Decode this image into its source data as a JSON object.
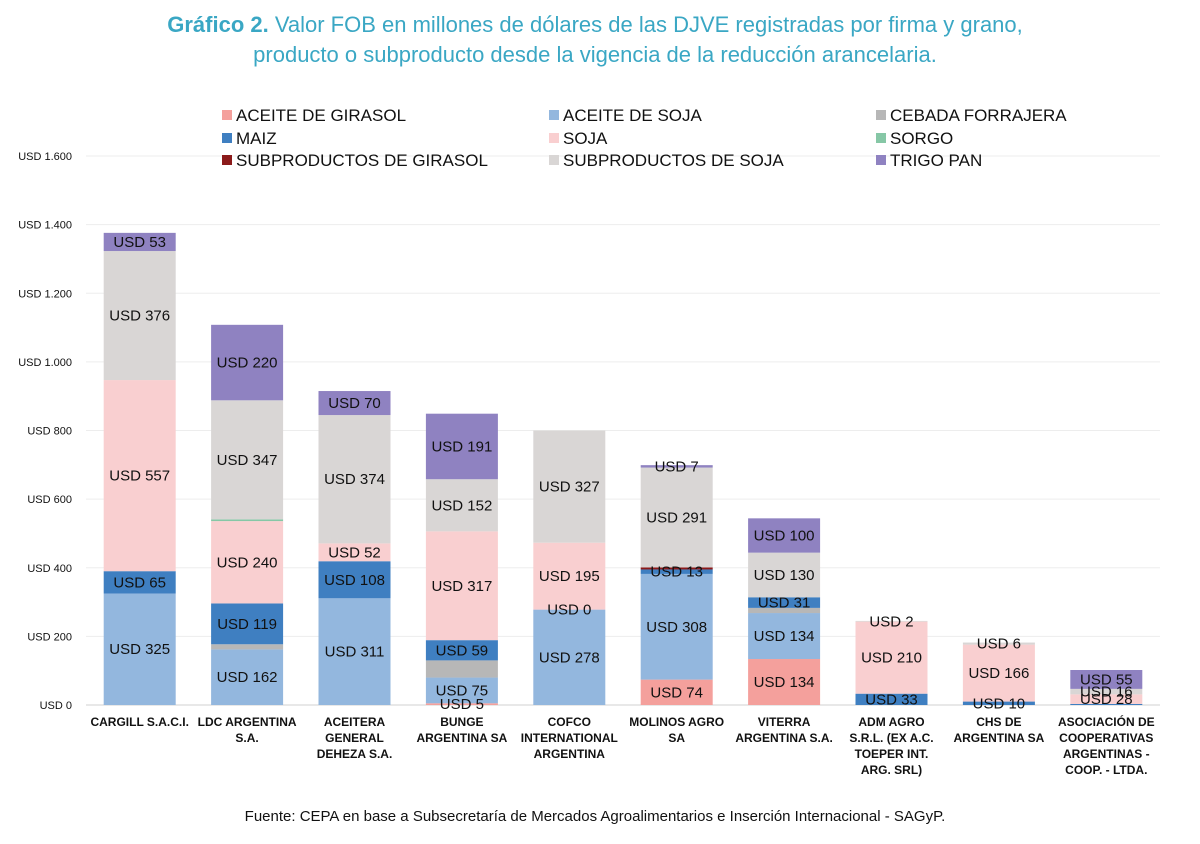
{
  "header": {
    "title_bold": "Gráfico 2.",
    "title_line1": " Valor FOB en millones de dólares de las DJVE registradas por firma y grano,",
    "title_line2": "producto o subproducto desde la vigencia de la reducción arancelaria."
  },
  "footer": {
    "source": "Fuente: CEPA en base a Subsecretaría de Mercados Agroalimentarios e Inserción Internacional - SAGyP."
  },
  "chart_data": {
    "type": "bar",
    "stacked": true,
    "title": "Gráfico 2. Valor FOB en millones de dólares de las DJVE registradas por firma y grano, producto o subproducto desde la vigencia de la reducción arancelaria.",
    "ylim": [
      0,
      1600
    ],
    "yticks": [
      0,
      200,
      400,
      600,
      800,
      1000,
      1200,
      1400,
      1600
    ],
    "ytick_labels": [
      "USD 0",
      "USD 200",
      "USD 400",
      "USD 600",
      "USD 800",
      "USD 1.000",
      "USD 1.200",
      "USD 1.400",
      "USD 1.600"
    ],
    "grid": true,
    "legend_position": "top",
    "categories": [
      [
        "CARGILL S.A.C.I."
      ],
      [
        "LDC ARGENTINA",
        "S.A."
      ],
      [
        "ACEITERA",
        "GENERAL",
        "DEHEZA S.A."
      ],
      [
        "BUNGE",
        "ARGENTINA SA"
      ],
      [
        "COFCO",
        "INTERNATIONAL",
        "ARGENTINA"
      ],
      [
        "MOLINOS AGRO",
        "SA"
      ],
      [
        "VITERRA",
        "ARGENTINA S.A."
      ],
      [
        "ADM AGRO",
        "S.R.L. (EX A.C.",
        "TOEPER INT.",
        "ARG. SRL)"
      ],
      [
        "CHS DE",
        "ARGENTINA SA"
      ],
      [
        "ASOCIACIÓN DE",
        "COOPERATIVAS",
        "ARGENTINAS -",
        "COOP. - LTDA."
      ]
    ],
    "series": [
      {
        "name": "ACEITE DE GIRASOL",
        "color": "#f4a09c",
        "values": [
          0,
          0,
          0,
          5,
          0,
          74,
          134,
          0,
          0,
          0
        ],
        "labels": [
          "",
          "",
          "",
          "USD 5",
          "",
          "USD 74",
          "USD 134",
          "",
          "",
          ""
        ]
      },
      {
        "name": "ACEITE DE SOJA",
        "color": "#93b7de",
        "values": [
          325,
          162,
          311,
          75,
          278,
          308,
          134,
          0,
          0,
          0
        ],
        "labels": [
          "USD 325",
          "USD 162",
          "USD 311",
          "USD 75",
          "USD 278",
          "USD 308",
          "USD 134",
          "",
          "",
          ""
        ]
      },
      {
        "name": "CEBADA FORRAJERA",
        "color": "#b7b7b7",
        "values": [
          0,
          15,
          0,
          50,
          0,
          0,
          15,
          0,
          0,
          0
        ],
        "labels": [
          "",
          "",
          "",
          "",
          "",
          "",
          "",
          "",
          "",
          ""
        ]
      },
      {
        "name": "MAIZ",
        "color": "#3f7fc1",
        "values": [
          65,
          119,
          108,
          59,
          0,
          13,
          31,
          33,
          10,
          3
        ],
        "labels": [
          "USD 65",
          "USD 119",
          "USD 108",
          "USD 59",
          "USD 0",
          "USD 13",
          "USD 31",
          "USD 33",
          "USD 10",
          ""
        ]
      },
      {
        "name": "SOJA",
        "color": "#f9cfd0",
        "values": [
          557,
          240,
          52,
          317,
          195,
          0,
          0,
          210,
          166,
          28
        ],
        "labels": [
          "USD 557",
          "USD 240",
          "USD 52",
          "USD 317",
          "USD 195",
          "",
          "",
          "USD 210",
          "USD 166",
          "USD 28"
        ]
      },
      {
        "name": "SORGO",
        "color": "#86c7a6",
        "values": [
          0,
          5,
          0,
          0,
          0,
          0,
          0,
          0,
          0,
          0
        ],
        "labels": [
          "",
          "",
          "",
          "",
          "",
          "",
          "",
          "",
          "",
          ""
        ]
      },
      {
        "name": "SUBPRODUCTOS DE GIRASOL",
        "color": "#8b1a1a",
        "values": [
          0,
          0,
          0,
          0,
          0,
          6,
          0,
          0,
          0,
          0
        ],
        "labels": [
          "",
          "",
          "",
          "",
          "",
          "",
          "",
          "",
          "",
          ""
        ]
      },
      {
        "name": "SUBPRODUCTOS DE SOJA",
        "color": "#d9d6d5",
        "values": [
          376,
          347,
          374,
          152,
          327,
          291,
          130,
          2,
          6,
          16
        ],
        "labels": [
          "USD 376",
          "USD 347",
          "USD 374",
          "USD 152",
          "USD 327",
          "USD 291",
          "USD 130",
          "USD 2",
          "USD 6",
          "USD 16"
        ]
      },
      {
        "name": "TRIGO PAN",
        "color": "#8f82c1",
        "values": [
          53,
          220,
          70,
          191,
          0,
          7,
          100,
          0,
          0,
          55
        ],
        "labels": [
          "USD 53",
          "USD 220",
          "USD 70",
          "USD 191",
          "",
          "USD 7",
          "USD 100",
          "",
          "",
          "USD 55"
        ]
      }
    ]
  }
}
